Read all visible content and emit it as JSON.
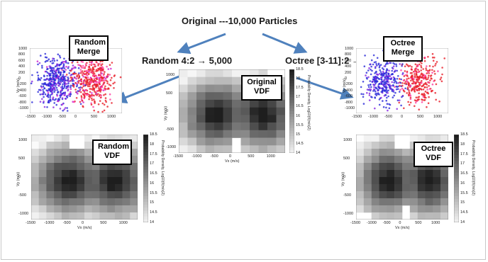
{
  "header": {
    "title": "Original ---10,000 Particles",
    "random_caption": "Random 4:2 → 5,000",
    "octree_caption": "Octree [3-11]:2 → 4,727"
  },
  "boxes": {
    "random_merge": [
      "Random",
      "Merge"
    ],
    "octree_merge": [
      "Octree",
      "Merge"
    ],
    "random_vdf": [
      "Random",
      "VDF"
    ],
    "original_vdf": [
      "Original",
      "VDF"
    ],
    "octree_vdf": [
      "Octree",
      "VDF"
    ]
  },
  "axes": {
    "vx_label": "Vx (m/s)",
    "vy_label": "Vy (m/s)",
    "colorbar_label": "Probability Density, Log10(f/(m/s)2)",
    "scatter_x_ticks": [
      "-1500",
      "-1000",
      "-500",
      "0",
      "500",
      "1000"
    ],
    "scatter_y_ticks": [
      "1000",
      "800",
      "600",
      "400",
      "200",
      "0",
      "-200",
      "-400",
      "-600",
      "-800",
      "-1000"
    ],
    "vdf_large_x_ticks": [
      "-1500",
      "-1000",
      "-500",
      "0",
      "500",
      "1000"
    ],
    "vdf_large_y_ticks": [
      "1000",
      "500",
      "0",
      "-500",
      "-1000"
    ],
    "vdf_small_x_ticks": [
      "-1500",
      "-1000",
      "-500",
      "0",
      "500",
      "1000"
    ],
    "vdf_small_y_ticks": [
      "1000",
      "500",
      "0",
      "-500",
      "-1000"
    ],
    "colorbar_ticks": [
      "18.5",
      "18",
      "17.5",
      "17",
      "16.5",
      "16",
      "15.5",
      "15",
      "14.5",
      "14"
    ]
  },
  "colors": {
    "arrow": "#4f81bd",
    "red_cluster": "#e8202a",
    "blue_cluster": "#2a2ad8",
    "magenta": "#d020d0"
  }
}
